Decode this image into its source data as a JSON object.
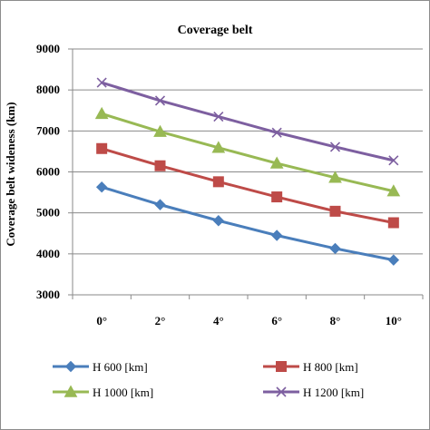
{
  "chart_data": {
    "type": "line",
    "title": "Coverage belt",
    "xlabel": "",
    "ylabel": "Coverage belt wideness (km)",
    "categories": [
      "0°",
      "2°",
      "4°",
      "6°",
      "8°",
      "10°"
    ],
    "ylim": [
      3000,
      9000
    ],
    "yticks": [
      "3000",
      "4000",
      "5000",
      "6000",
      "7000",
      "8000",
      "9000"
    ],
    "grid": "horizontal",
    "legend_position": "bottom",
    "series": [
      {
        "name": "H 600 [km]",
        "values": [
          5630,
          5200,
          4810,
          4450,
          4130,
          3850
        ],
        "color": "#4a7ebb",
        "marker": "diamond"
      },
      {
        "name": "H 800 [km]",
        "values": [
          6570,
          6150,
          5760,
          5390,
          5040,
          4760
        ],
        "color": "#be4b48",
        "marker": "square"
      },
      {
        "name": "H 1000 [km]",
        "values": [
          7420,
          6980,
          6590,
          6210,
          5860,
          5530
        ],
        "color": "#98b954",
        "marker": "triangle"
      },
      {
        "name": "H 1200 [km]",
        "values": [
          8180,
          7740,
          7350,
          6960,
          6610,
          6280
        ],
        "color": "#7d5fa0",
        "marker": "x"
      }
    ]
  }
}
